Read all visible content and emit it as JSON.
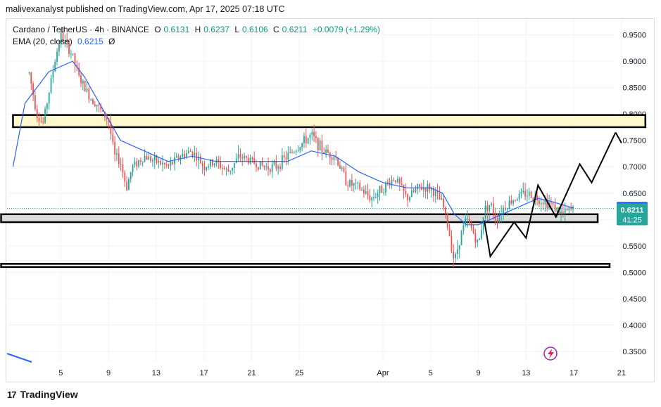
{
  "header": {
    "published": "malivexanalyst published on TradingView.com, Apr 17, 2025 07:18 UTC"
  },
  "legend": {
    "symbol": "Cardano / TetherUS · 4h · BINANCE",
    "o_label": "O",
    "o": "0.6131",
    "h_label": "H",
    "h": "0.6237",
    "l_label": "L",
    "l": "0.6106",
    "c_label": "C",
    "c": "0.6211",
    "change": "+0.0079 (+1.29%)",
    "ema_label": "EMA (20, close)",
    "ema_value": "0.6215",
    "ema_extra": "Ø"
  },
  "footer": {
    "brand": "TradingView",
    "logo": "17"
  },
  "chart_data": {
    "type": "candlestick",
    "y_axis": {
      "min": 0.33,
      "max": 0.98,
      "ticks": [
        0.95,
        0.9,
        0.85,
        0.8,
        0.75,
        0.7,
        0.65,
        0.6,
        0.55,
        0.5,
        0.45,
        0.4,
        0.35
      ],
      "tick_labels": [
        "0.9500",
        "0.9000",
        "0.8500",
        "0.8000",
        "0.7500",
        "0.7000",
        "0.6500",
        "0.6000",
        "0.5500",
        "0.5000",
        "0.4500",
        "0.4000",
        "0.3500"
      ]
    },
    "x_axis": {
      "ticks": [
        {
          "label": "5",
          "date": "2025-03-05"
        },
        {
          "label": "9",
          "date": "2025-03-09"
        },
        {
          "label": "13",
          "date": "2025-03-13"
        },
        {
          "label": "17",
          "date": "2025-03-17"
        },
        {
          "label": "21",
          "date": "2025-03-21"
        },
        {
          "label": "25",
          "date": "2025-03-25"
        },
        {
          "label": "Apr",
          "date": "2025-04-01"
        },
        {
          "label": "5",
          "date": "2025-04-05"
        },
        {
          "label": "9",
          "date": "2025-04-09"
        },
        {
          "label": "13",
          "date": "2025-04-13"
        },
        {
          "label": "17",
          "date": "2025-04-17"
        },
        {
          "label": "21",
          "date": "2025-04-21"
        }
      ]
    },
    "price_path": [
      {
        "date": "2025-03-02",
        "price": 0.92
      },
      {
        "date": "2025-03-03",
        "price": 0.8
      },
      {
        "date": "2025-03-03T12:00",
        "price": 0.78
      },
      {
        "date": "2025-03-04",
        "price": 0.84
      },
      {
        "date": "2025-03-04T12:00",
        "price": 0.9
      },
      {
        "date": "2025-03-05",
        "price": 0.95
      },
      {
        "date": "2025-03-05T12:00",
        "price": 0.93
      },
      {
        "date": "2025-03-06",
        "price": 0.91
      },
      {
        "date": "2025-03-06T12:00",
        "price": 0.87
      },
      {
        "date": "2025-03-07",
        "price": 0.85
      },
      {
        "date": "2025-03-07T12:00",
        "price": 0.83
      },
      {
        "date": "2025-03-08",
        "price": 0.82
      },
      {
        "date": "2025-03-08T12:00",
        "price": 0.8
      },
      {
        "date": "2025-03-09",
        "price": 0.79
      },
      {
        "date": "2025-03-09T12:00",
        "price": 0.72
      },
      {
        "date": "2025-03-10",
        "price": 0.71
      },
      {
        "date": "2025-03-10T12:00",
        "price": 0.66
      },
      {
        "date": "2025-03-11",
        "price": 0.7
      },
      {
        "date": "2025-03-12",
        "price": 0.72
      },
      {
        "date": "2025-03-13",
        "price": 0.71
      },
      {
        "date": "2025-03-14",
        "price": 0.7
      },
      {
        "date": "2025-03-15",
        "price": 0.72
      },
      {
        "date": "2025-03-16",
        "price": 0.73
      },
      {
        "date": "2025-03-17",
        "price": 0.7
      },
      {
        "date": "2025-03-18",
        "price": 0.71
      },
      {
        "date": "2025-03-19",
        "price": 0.69
      },
      {
        "date": "2025-03-20",
        "price": 0.72
      },
      {
        "date": "2025-03-21",
        "price": 0.71
      },
      {
        "date": "2025-03-22",
        "price": 0.7
      },
      {
        "date": "2025-03-23",
        "price": 0.7
      },
      {
        "date": "2025-03-24",
        "price": 0.72
      },
      {
        "date": "2025-03-25",
        "price": 0.74
      },
      {
        "date": "2025-03-26",
        "price": 0.76
      },
      {
        "date": "2025-03-27",
        "price": 0.73
      },
      {
        "date": "2025-03-28",
        "price": 0.72
      },
      {
        "date": "2025-03-29",
        "price": 0.67
      },
      {
        "date": "2025-03-30",
        "price": 0.66
      },
      {
        "date": "2025-03-31",
        "price": 0.64
      },
      {
        "date": "2025-04-01",
        "price": 0.66
      },
      {
        "date": "2025-04-02",
        "price": 0.68
      },
      {
        "date": "2025-04-03",
        "price": 0.64
      },
      {
        "date": "2025-04-04",
        "price": 0.66
      },
      {
        "date": "2025-04-05",
        "price": 0.66
      },
      {
        "date": "2025-04-06",
        "price": 0.63
      },
      {
        "date": "2025-04-06T12:00",
        "price": 0.58
      },
      {
        "date": "2025-04-07",
        "price": 0.52
      },
      {
        "date": "2025-04-07T12:00",
        "price": 0.57
      },
      {
        "date": "2025-04-08",
        "price": 0.6
      },
      {
        "date": "2025-04-08T12:00",
        "price": 0.58
      },
      {
        "date": "2025-04-09",
        "price": 0.55
      },
      {
        "date": "2025-04-09T12:00",
        "price": 0.62
      },
      {
        "date": "2025-04-10",
        "price": 0.63
      },
      {
        "date": "2025-04-10T12:00",
        "price": 0.6
      },
      {
        "date": "2025-04-11",
        "price": 0.62
      },
      {
        "date": "2025-04-12",
        "price": 0.64
      },
      {
        "date": "2025-04-13",
        "price": 0.65
      },
      {
        "date": "2025-04-14",
        "price": 0.64
      },
      {
        "date": "2025-04-15",
        "price": 0.63
      },
      {
        "date": "2025-04-16",
        "price": 0.61
      },
      {
        "date": "2025-04-17",
        "price": 0.6211
      }
    ],
    "ema_path": [
      {
        "date": "2025-03-01",
        "price": 0.7
      },
      {
        "date": "2025-03-02",
        "price": 0.82
      },
      {
        "date": "2025-03-04",
        "price": 0.88
      },
      {
        "date": "2025-03-06",
        "price": 0.9
      },
      {
        "date": "2025-03-07",
        "price": 0.87
      },
      {
        "date": "2025-03-08",
        "price": 0.83
      },
      {
        "date": "2025-03-09",
        "price": 0.79
      },
      {
        "date": "2025-03-10",
        "price": 0.75
      },
      {
        "date": "2025-03-12",
        "price": 0.73
      },
      {
        "date": "2025-03-14",
        "price": 0.71
      },
      {
        "date": "2025-03-16",
        "price": 0.72
      },
      {
        "date": "2025-03-18",
        "price": 0.71
      },
      {
        "date": "2025-03-21",
        "price": 0.71
      },
      {
        "date": "2025-03-24",
        "price": 0.71
      },
      {
        "date": "2025-03-26",
        "price": 0.73
      },
      {
        "date": "2025-03-28",
        "price": 0.72
      },
      {
        "date": "2025-03-30",
        "price": 0.69
      },
      {
        "date": "2025-04-01",
        "price": 0.67
      },
      {
        "date": "2025-04-03",
        "price": 0.66
      },
      {
        "date": "2025-04-05",
        "price": 0.66
      },
      {
        "date": "2025-04-06",
        "price": 0.65
      },
      {
        "date": "2025-04-07",
        "price": 0.61
      },
      {
        "date": "2025-04-08",
        "price": 0.59
      },
      {
        "date": "2025-04-09",
        "price": 0.59
      },
      {
        "date": "2025-04-10",
        "price": 0.6
      },
      {
        "date": "2025-04-12",
        "price": 0.62
      },
      {
        "date": "2025-04-14",
        "price": 0.64
      },
      {
        "date": "2025-04-15",
        "price": 0.635
      },
      {
        "date": "2025-04-17",
        "price": 0.6215
      }
    ],
    "zones": [
      {
        "name": "resistance-zone",
        "from_date": "2025-03-01",
        "to_date": "2025-04-23",
        "top": 0.798,
        "bottom": 0.775,
        "fill": "#fff8cc"
      },
      {
        "name": "support-zone",
        "from_date": "2025-02-28",
        "to_date": "2025-04-19",
        "top": 0.61,
        "bottom": 0.595,
        "fill": "#dcdcdc"
      },
      {
        "name": "low-support",
        "from_date": "2025-02-28",
        "to_date": "2025-04-20",
        "top": 0.516,
        "bottom": 0.51,
        "fill": "#ffffff"
      }
    ],
    "projection": [
      {
        "date": "2025-04-09T12:00",
        "price": 0.598
      },
      {
        "date": "2025-04-10",
        "price": 0.53
      },
      {
        "date": "2025-04-12",
        "price": 0.595
      },
      {
        "date": "2025-04-13",
        "price": 0.565
      },
      {
        "date": "2025-04-14",
        "price": 0.665
      },
      {
        "date": "2025-04-15T12:00",
        "price": 0.605
      },
      {
        "date": "2025-04-17T12:00",
        "price": 0.705
      },
      {
        "date": "2025-04-18T12:00",
        "price": 0.67
      },
      {
        "date": "2025-04-20T12:00",
        "price": 0.765
      }
    ],
    "projection_arrow_tip": {
      "date": "2025-04-21",
      "price": 0.745
    },
    "last_price": {
      "price": 0.6211,
      "label": "0.6211",
      "countdown": "41:25",
      "color": "#26a69a"
    },
    "ema_label": {
      "price": 0.6215,
      "label": "0.6215",
      "color": "#2962ff"
    },
    "colors": {
      "up": "#26a69a",
      "down": "#ef5350",
      "ema": "#2962ff",
      "grid": "#f0f3fa"
    }
  }
}
